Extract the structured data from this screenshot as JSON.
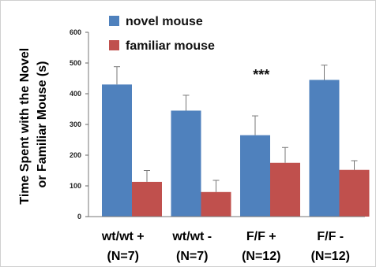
{
  "chart_data": {
    "type": "bar",
    "ylabel_lines": [
      "Time Spent with the Novel",
      "or Familiar Mouse (s)"
    ],
    "ylim": [
      0,
      600
    ],
    "yticks": [
      0,
      100,
      200,
      300,
      400,
      500,
      600
    ],
    "categories": [
      [
        "wt/wt +",
        "(N=7)"
      ],
      [
        "wt/wt -",
        "(N=7)"
      ],
      [
        "F/F +",
        "(N=12)"
      ],
      [
        "F/F -",
        "(N=12)"
      ]
    ],
    "series": [
      {
        "name": "novel mouse",
        "color": "#4f81bd",
        "values": [
          430,
          345,
          265,
          445
        ],
        "errors": [
          58,
          50,
          63,
          48
        ]
      },
      {
        "name": "familiar mouse",
        "color": "#c0504d",
        "values": [
          113,
          80,
          175,
          152
        ],
        "errors": [
          37,
          38,
          50,
          30
        ]
      }
    ],
    "annotations": [
      {
        "text": "***",
        "category_index": 2
      }
    ],
    "legend_position": "top",
    "grid": false
  }
}
